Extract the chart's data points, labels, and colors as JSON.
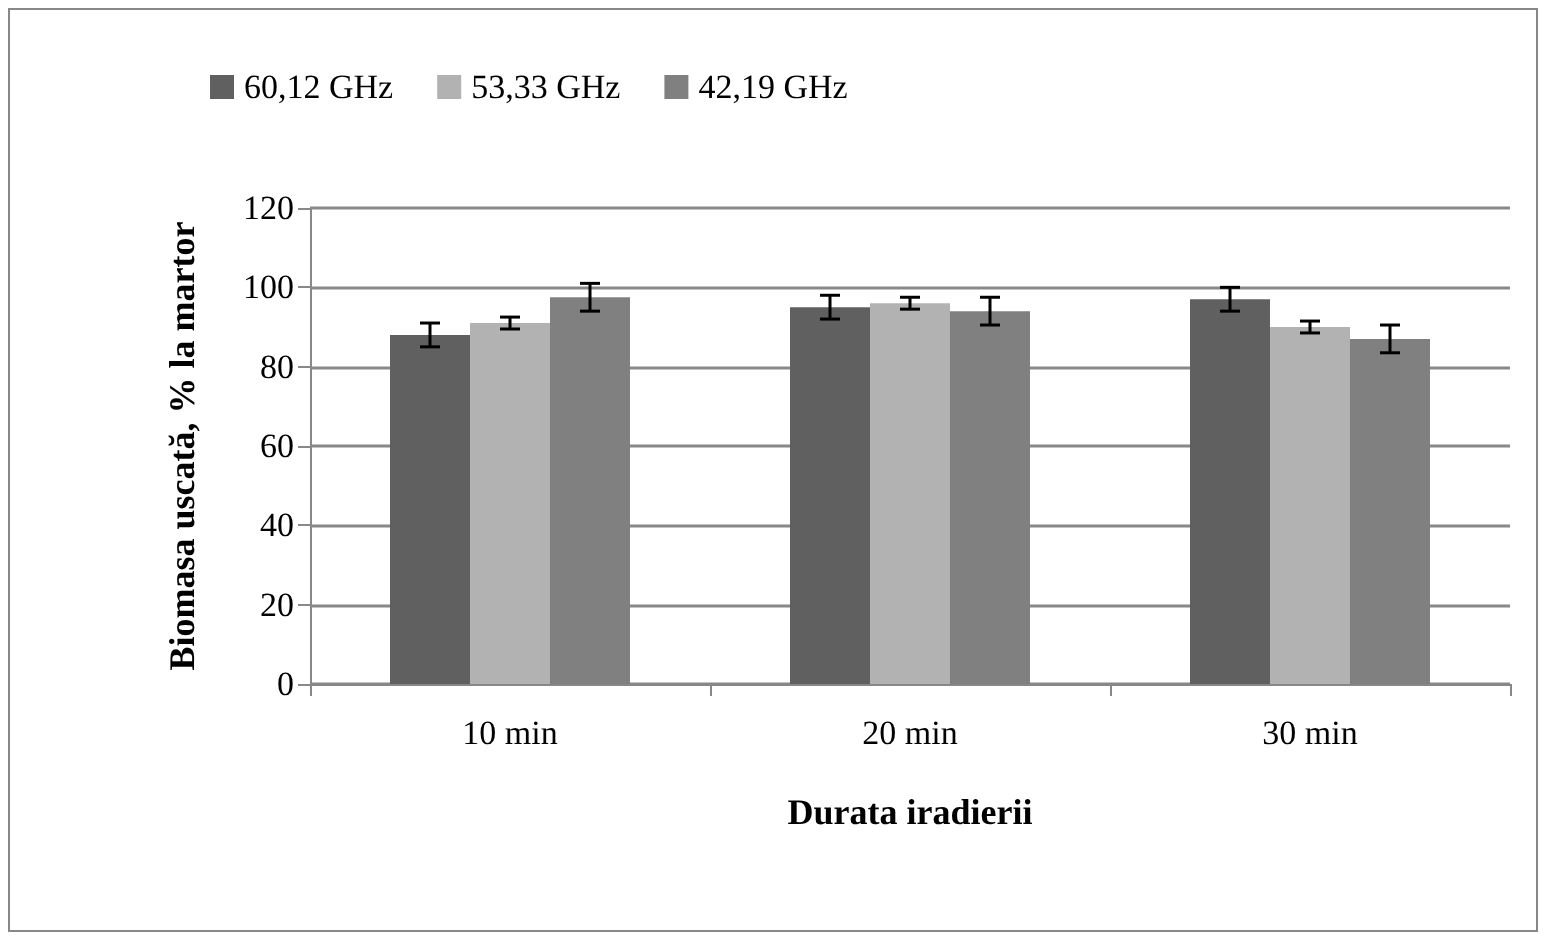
{
  "chart_data": {
    "type": "bar",
    "xlabel": "Durata iradierii",
    "ylabel": "Biomasa uscată, % la martor",
    "categories": [
      "10 min",
      "20 min",
      "30 min"
    ],
    "series": [
      {
        "name": "60,12 GHz",
        "color": "#606060",
        "values": [
          88,
          95,
          97
        ],
        "errors": [
          3,
          3,
          3
        ]
      },
      {
        "name": "53,33 GHz",
        "color": "#b2b2b2",
        "values": [
          91,
          96,
          90
        ],
        "errors": [
          1.5,
          1.5,
          1.5
        ]
      },
      {
        "name": "42,19 GHz",
        "color": "#808080",
        "values": [
          97.5,
          94,
          87
        ],
        "errors": [
          3.5,
          3.5,
          3.5
        ]
      }
    ],
    "ylim": [
      0,
      120
    ],
    "yticks": [
      0,
      20,
      40,
      60,
      80,
      100,
      120
    ],
    "grid": "y",
    "legend": "top"
  }
}
